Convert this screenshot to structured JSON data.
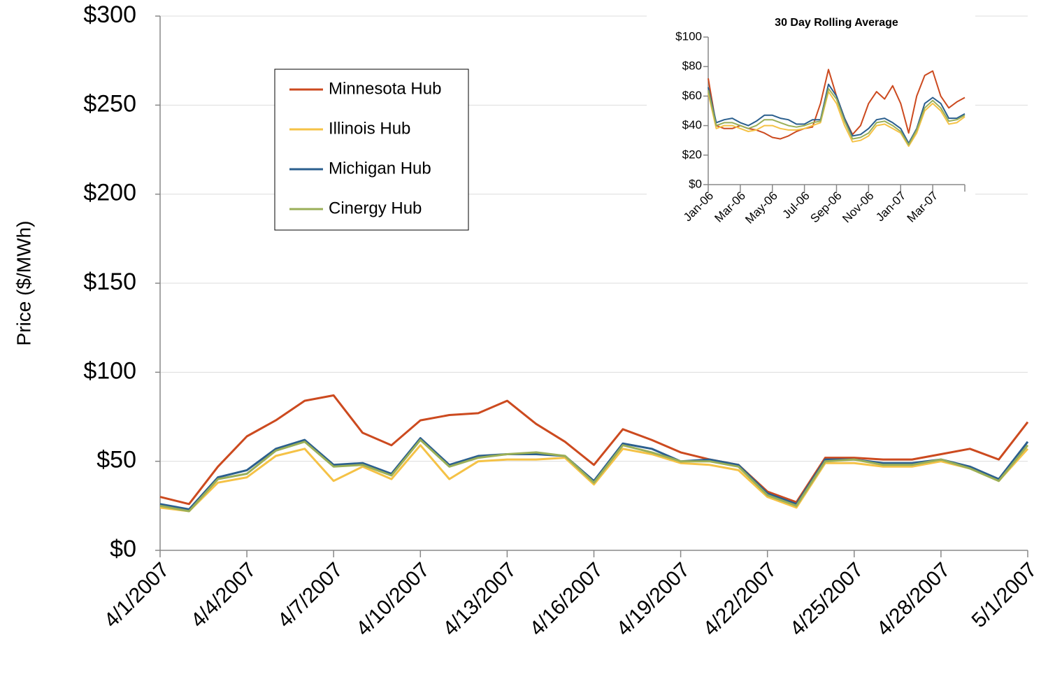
{
  "chart_data": [
    {
      "type": "line",
      "y_label": "Price ($/MWh)",
      "x": [
        "4/1/2007",
        null,
        null,
        "4/4/2007",
        null,
        null,
        "4/7/2007",
        null,
        null,
        "4/10/2007",
        null,
        null,
        "4/13/2007",
        null,
        null,
        "4/16/2007",
        null,
        null,
        "4/19/2007",
        null,
        null,
        "4/22/2007",
        null,
        null,
        "4/25/2007",
        null,
        null,
        "4/28/2007",
        null,
        null,
        "5/1/2007"
      ],
      "series": [
        {
          "name": "Minnesota Hub",
          "color": "#cc4a1f",
          "values": [
            30,
            26,
            47,
            64,
            73,
            84,
            87,
            66,
            59,
            73,
            76,
            77,
            84,
            71,
            61,
            48,
            68,
            62,
            55,
            51,
            48,
            33,
            27,
            52,
            52,
            51,
            51,
            54,
            57,
            51,
            72
          ]
        },
        {
          "name": "Illinois Hub",
          "color": "#f5c246",
          "values": [
            24,
            22,
            38,
            41,
            53,
            57,
            39,
            47,
            40,
            59,
            40,
            50,
            51,
            51,
            52,
            37,
            57,
            54,
            49,
            48,
            45,
            30,
            24,
            49,
            49,
            47,
            47,
            50,
            46,
            39,
            57
          ]
        },
        {
          "name": "Michigan Hub",
          "color": "#2b5f8e",
          "values": [
            26,
            23,
            41,
            45,
            57,
            62,
            48,
            49,
            43,
            63,
            48,
            53,
            54,
            54,
            53,
            39,
            60,
            57,
            50,
            51,
            48,
            32,
            26,
            51,
            51,
            49,
            49,
            51,
            47,
            40,
            61
          ]
        },
        {
          "name": "Cinergy Hub",
          "color": "#9aaf58",
          "values": [
            25,
            22,
            40,
            43,
            56,
            61,
            47,
            48,
            42,
            62,
            47,
            52,
            54,
            55,
            53,
            38,
            59,
            55,
            50,
            50,
            47,
            31,
            25,
            50,
            51,
            48,
            48,
            51,
            46,
            39,
            59
          ]
        }
      ],
      "ylim": [
        0,
        300
      ],
      "yticks": [
        {
          "value": 0,
          "label": "$0"
        },
        {
          "value": 50,
          "label": "$50"
        },
        {
          "value": 100,
          "label": "$100"
        },
        {
          "value": 150,
          "label": "$150"
        },
        {
          "value": 200,
          "label": "$200"
        },
        {
          "value": 250,
          "label": "$250"
        },
        {
          "value": 300,
          "label": "$300"
        }
      ],
      "grid": true,
      "legend": "upper left"
    },
    {
      "type": "line",
      "title": "30 Day Rolling Average",
      "x": [
        "Jan-06",
        null,
        null,
        null,
        "Mar-06",
        null,
        null,
        null,
        "May-06",
        null,
        null,
        null,
        "Jul-06",
        null,
        null,
        null,
        "Sep-06",
        null,
        null,
        null,
        "Nov-06",
        null,
        null,
        null,
        "Jan-07",
        null,
        null,
        null,
        "Mar-07",
        null,
        null,
        null,
        null
      ],
      "series": [
        {
          "color": "#cc4a1f",
          "values": [
            72,
            40,
            38,
            38,
            40,
            38,
            37,
            35,
            32,
            31,
            33,
            36,
            38,
            39,
            55,
            78,
            60,
            45,
            34,
            40,
            55,
            63,
            58,
            67,
            55,
            35,
            60,
            74,
            77,
            60,
            52,
            56,
            59
          ]
        },
        {
          "color": "#f5c246",
          "values": [
            62,
            38,
            40,
            40,
            38,
            36,
            37,
            40,
            40,
            38,
            37,
            37,
            38,
            40,
            42,
            63,
            55,
            40,
            29,
            30,
            33,
            40,
            41,
            38,
            35,
            26,
            35,
            50,
            55,
            50,
            41,
            42,
            46
          ]
        },
        {
          "color": "#2b5f8e",
          "values": [
            66,
            42,
            44,
            45,
            42,
            40,
            43,
            47,
            47,
            45,
            44,
            41,
            41,
            44,
            44,
            68,
            60,
            45,
            33,
            34,
            38,
            44,
            45,
            42,
            38,
            28,
            38,
            55,
            59,
            55,
            45,
            45,
            48
          ]
        },
        {
          "color": "#9aaf58",
          "values": [
            64,
            40,
            42,
            42,
            40,
            38,
            40,
            44,
            44,
            42,
            40,
            39,
            40,
            42,
            43,
            65,
            58,
            43,
            31,
            32,
            35,
            42,
            43,
            40,
            36,
            27,
            37,
            52,
            57,
            52,
            43,
            44,
            47
          ]
        }
      ],
      "ylim": [
        0,
        100
      ],
      "yticks": [
        {
          "value": 0,
          "label": "$0"
        },
        {
          "value": 20,
          "label": "$20"
        },
        {
          "value": 40,
          "label": "$40"
        },
        {
          "value": 60,
          "label": "$60"
        },
        {
          "value": 80,
          "label": "$80"
        },
        {
          "value": 100,
          "label": "$100"
        }
      ],
      "grid": false,
      "legend": false
    }
  ]
}
